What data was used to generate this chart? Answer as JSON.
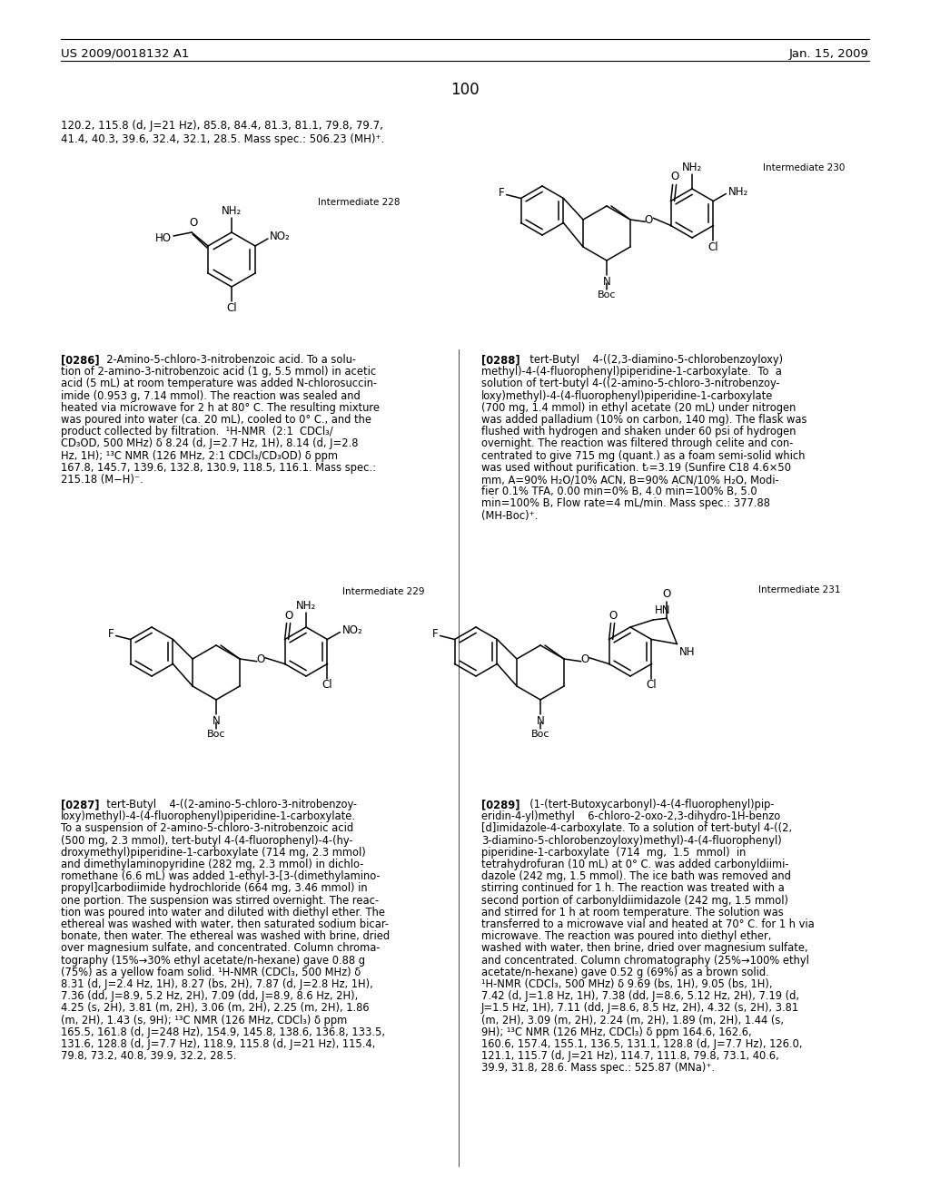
{
  "page_header_left": "US 2009/0018132 A1",
  "page_header_right": "Jan. 15, 2009",
  "page_number": "100",
  "bg": "#ffffff",
  "top_line1": "120.2, 115.8 (d, J=21 Hz), 85.8, 84.4, 81.3, 81.1, 79.8, 79.7,",
  "top_line2": "41.4, 40.3, 39.6, 32.4, 32.1, 28.5. Mass spec.: 506.23 (MH)⁺.",
  "int228_label": "Intermediate 228",
  "int229_label": "Intermediate 229",
  "int230_label": "Intermediate 230",
  "int231_label": "Intermediate 231"
}
